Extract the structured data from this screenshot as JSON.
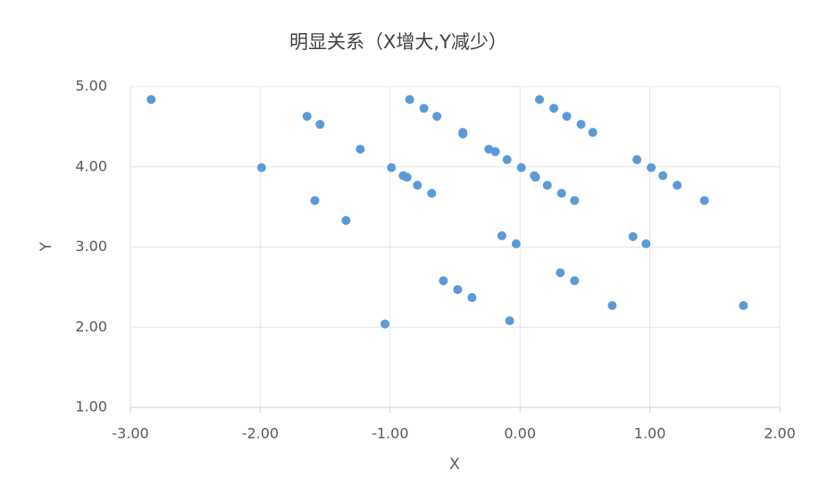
{
  "chart_data": {
    "type": "scatter",
    "title": "明显关系（X增大,Y减少）",
    "x_label": "X",
    "y_label": "Y",
    "color": "#5b9bd5",
    "grid": true,
    "xlim": [
      -3,
      2
    ],
    "xticks": [
      {
        "value": -3,
        "label": "-3.00"
      },
      {
        "value": -2,
        "label": "-2.00"
      },
      {
        "value": -1,
        "label": "-1.00"
      },
      {
        "value": 0,
        "label": "0.00"
      },
      {
        "value": 1,
        "label": "1.00"
      },
      {
        "value": 2,
        "label": "2.00"
      }
    ],
    "ylim": [
      1,
      5
    ],
    "yticks": [
      {
        "value": 1,
        "label": "1.00"
      },
      {
        "value": 2,
        "label": "2.00"
      },
      {
        "value": 3,
        "label": "3.00"
      },
      {
        "value": 4,
        "label": "4.00"
      },
      {
        "value": 5,
        "label": "5.00"
      }
    ],
    "x": [
      -2.84,
      -1.99,
      -1.64,
      -1.54,
      -1.58,
      -1.34,
      -1.23,
      -1.04,
      -0.99,
      -0.9,
      -0.87,
      -0.85,
      -0.79,
      -0.74,
      -0.68,
      -0.64,
      -0.44,
      -0.44,
      -0.59,
      -0.48,
      -0.37,
      -0.24,
      -0.19,
      -0.14,
      -0.1,
      -0.08,
      -0.03,
      0.01,
      0.11,
      0.12,
      0.15,
      0.21,
      0.26,
      0.31,
      0.32,
      0.36,
      0.42,
      0.42,
      0.47,
      0.56,
      0.71,
      0.87,
      0.9,
      0.97,
      1.01,
      1.1,
      1.21,
      1.42,
      1.72
    ],
    "values": [
      4.84,
      3.99,
      4.63,
      4.53,
      3.58,
      3.33,
      4.22,
      2.04,
      3.99,
      3.89,
      3.87,
      4.84,
      3.77,
      4.73,
      3.67,
      4.63,
      4.43,
      4.41,
      2.58,
      2.47,
      2.37,
      4.22,
      4.19,
      3.14,
      4.09,
      2.08,
      3.04,
      3.99,
      3.89,
      3.87,
      4.84,
      3.77,
      4.73,
      2.68,
      3.67,
      4.63,
      3.58,
      2.58,
      4.53,
      4.43,
      2.27,
      3.13,
      4.09,
      3.04,
      3.99,
      3.89,
      3.77,
      3.58,
      2.27
    ]
  }
}
